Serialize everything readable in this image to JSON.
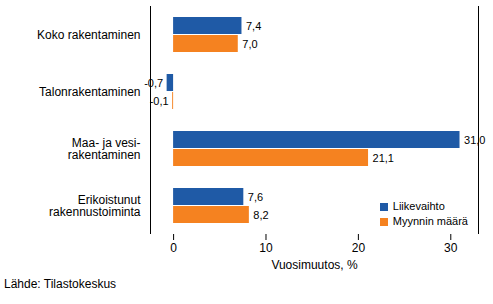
{
  "chart_data": {
    "type": "bar",
    "orientation": "horizontal",
    "categories": [
      "Koko rakentaminen",
      "Talonrakentaminen",
      "Maa- ja vesi-\nrakentaminen",
      "Erikoistunut\nrakennustoiminta"
    ],
    "series": [
      {
        "name": "Liikevaihto",
        "color": "#1f5aa6",
        "values": [
          7.4,
          -0.7,
          31.0,
          7.6
        ],
        "value_labels": [
          "7,4",
          "-0,7",
          "31,0",
          "7,6"
        ]
      },
      {
        "name": "Myynnin määrä",
        "color": "#f58220",
        "values": [
          7.0,
          -0.1,
          21.1,
          8.2
        ],
        "value_labels": [
          "7,0",
          "-0,1",
          "21,1",
          "8,2"
        ]
      }
    ],
    "xlabel": "Vuosimuutos, %",
    "xlim": [
      -2.5,
      33
    ],
    "xticks": [
      0,
      10,
      20,
      30
    ],
    "grid": false,
    "legend": "lower right",
    "data_labels": true,
    "caption": "Lähde: Tilastokeskus"
  }
}
